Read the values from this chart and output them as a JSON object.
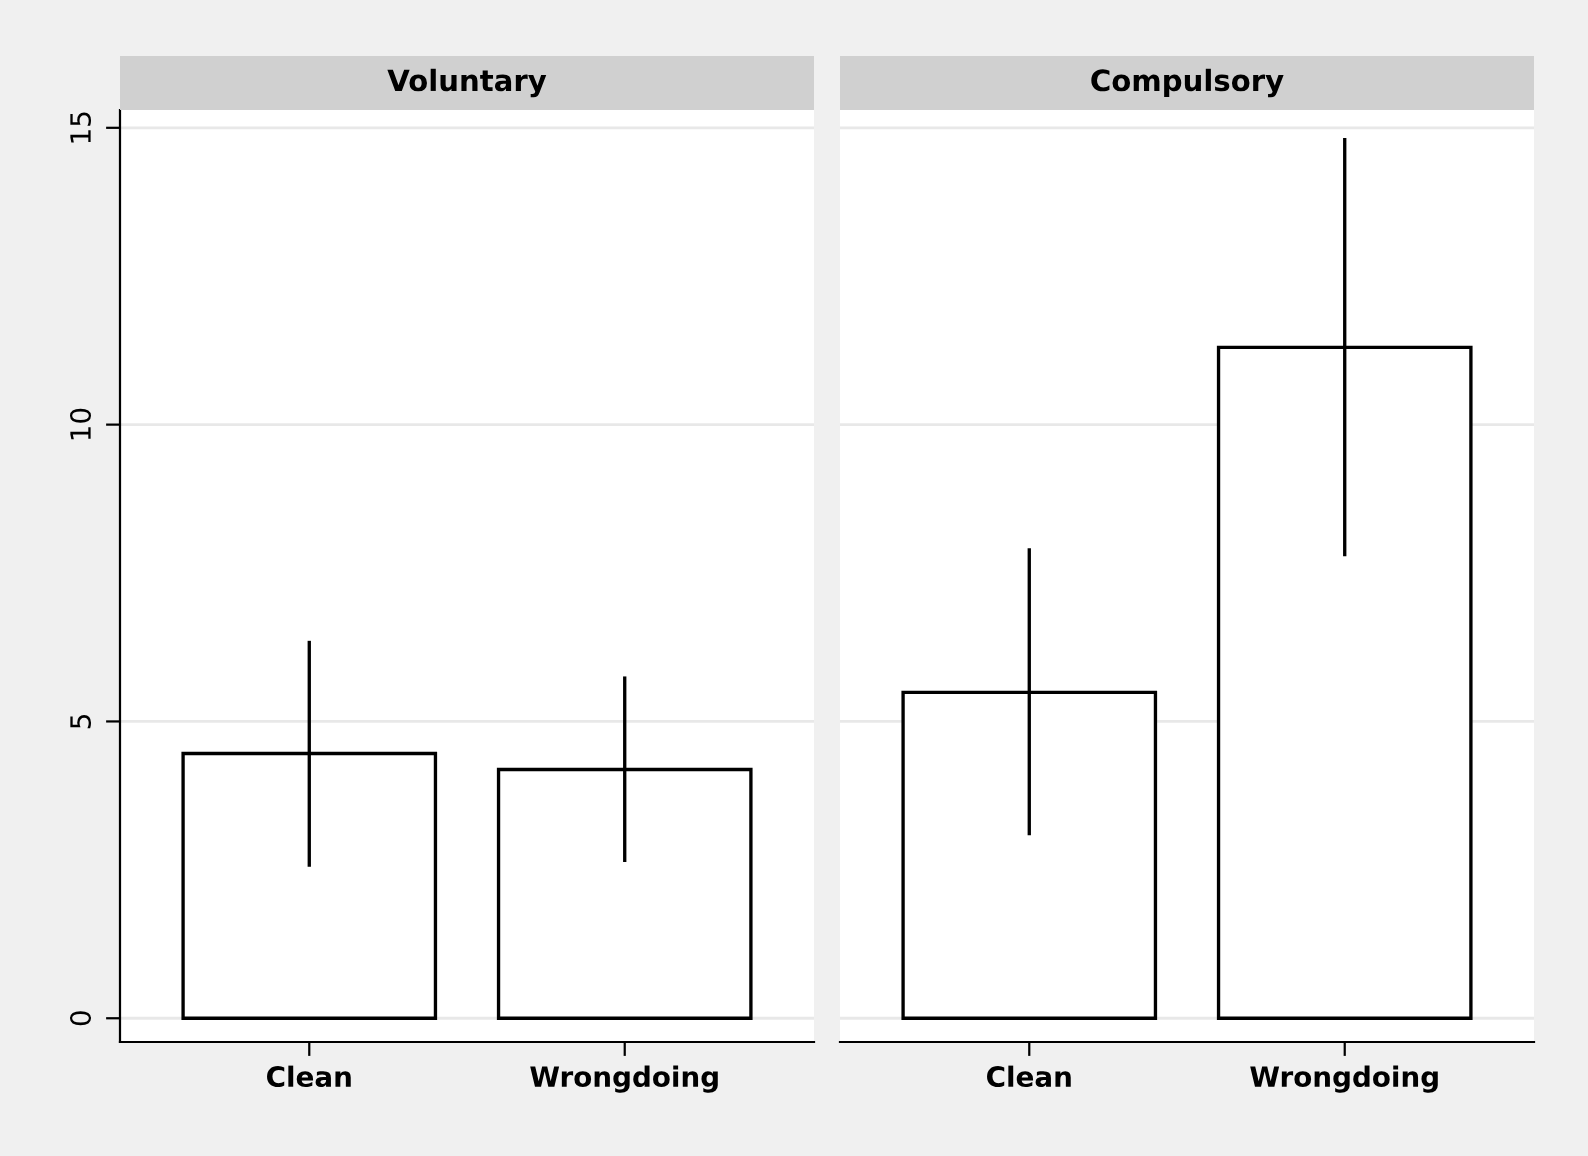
{
  "chart_data": [
    {
      "type": "bar",
      "title": "Voluntary",
      "categories": [
        "Clean",
        "Wrongdoing"
      ],
      "values": [
        4.46,
        4.19
      ],
      "errors": [
        [
          2.58,
          6.33
        ],
        [
          2.66,
          5.73
        ]
      ],
      "color": "#ffffff",
      "ylim": [
        -0.4,
        15.3
      ],
      "yticks": [
        0,
        5,
        10,
        15
      ],
      "grid": "y"
    },
    {
      "type": "bar",
      "title": "Compulsory",
      "categories": [
        "Clean",
        "Wrongdoing"
      ],
      "values": [
        5.49,
        11.3
      ],
      "errors": [
        [
          3.11,
          7.89
        ],
        [
          7.81,
          14.8
        ]
      ],
      "color": "#ffffff",
      "ylim": [
        -0.4,
        15.3
      ],
      "yticks": [
        0,
        5,
        10,
        15
      ],
      "grid": "y",
      "tick_labels": "x"
    }
  ]
}
